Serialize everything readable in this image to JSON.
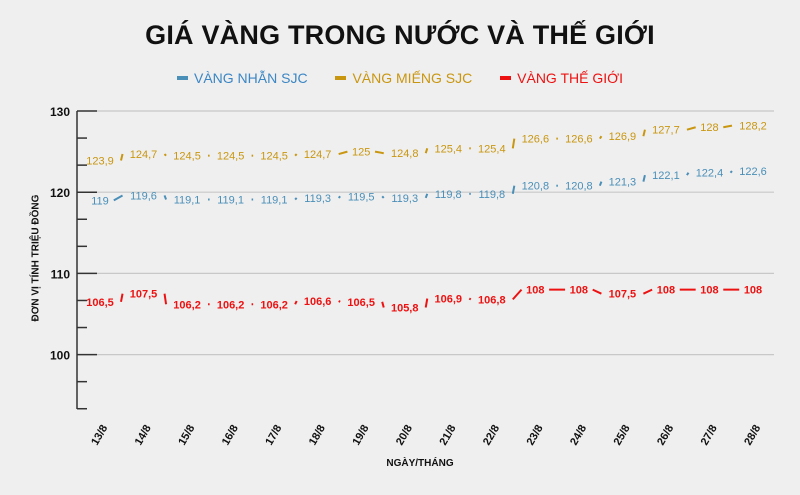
{
  "chart_data": {
    "type": "line",
    "title": "GIÁ VÀNG TRONG NƯỚC VÀ THẾ GIỚI",
    "xlabel": "NGÀY/THÁNG",
    "ylabel": "ĐƠN VỊ TÍNH TRIỆU ĐỒNG",
    "ylim": [
      93.3,
      130
    ],
    "yticks": [
      100,
      110,
      120,
      130
    ],
    "grid": "horizontal major",
    "legend_position": "top",
    "categories": [
      "13/8",
      "14/8",
      "15/8",
      "16/8",
      "17/8",
      "18/8",
      "19/8",
      "20/8",
      "21/8",
      "22/8",
      "23/8",
      "24/8",
      "25/8",
      "26/8",
      "27/8",
      "28/8"
    ],
    "series": [
      {
        "name": "VÀNG NHẪN SJC",
        "color": "#4a8fb8",
        "values": [
          119,
          119.6,
          119.1,
          119.1,
          119.1,
          119.3,
          119.5,
          119.3,
          119.8,
          119.8,
          120.8,
          120.8,
          121.3,
          122.1,
          122.4,
          122.6
        ],
        "labels": [
          "119",
          "119,6",
          "119,1",
          "119,1",
          "119,1",
          "119,3",
          "119,5",
          "119,3",
          "119,8",
          "119,8",
          "120,8",
          "120,8",
          "121,3",
          "122,1",
          "122,4",
          "122,6"
        ]
      },
      {
        "name": "VÀNG MIẾNG SJC",
        "color": "#c9960f",
        "values": [
          123.9,
          124.7,
          124.5,
          124.5,
          124.5,
          124.7,
          125,
          124.8,
          125.4,
          125.4,
          126.6,
          126.6,
          126.9,
          127.7,
          128,
          128.2
        ],
        "labels": [
          "123,9",
          "124,7",
          "124,5",
          "124,5",
          "124,5",
          "124,7",
          "125",
          "124,8",
          "125,4",
          "125,4",
          "126,6",
          "126,6",
          "126,9",
          "127,7",
          "128",
          "128,2"
        ]
      },
      {
        "name": "VÀNG THẾ GIỚI",
        "color": "#ee1111",
        "values": [
          106.5,
          107.5,
          106.2,
          106.2,
          106.2,
          106.6,
          106.5,
          105.8,
          106.9,
          106.8,
          108,
          108,
          107.5,
          108,
          108,
          108
        ],
        "labels": [
          "106,5",
          "107,5",
          "106,2",
          "106,2",
          "106,2",
          "106,6",
          "106,5",
          "105,8",
          "106,9",
          "106,8",
          "108",
          "108",
          "107,5",
          "108",
          "108",
          "108"
        ]
      }
    ]
  },
  "axis_color": "#333333",
  "grid_color": "#c8c8c8"
}
